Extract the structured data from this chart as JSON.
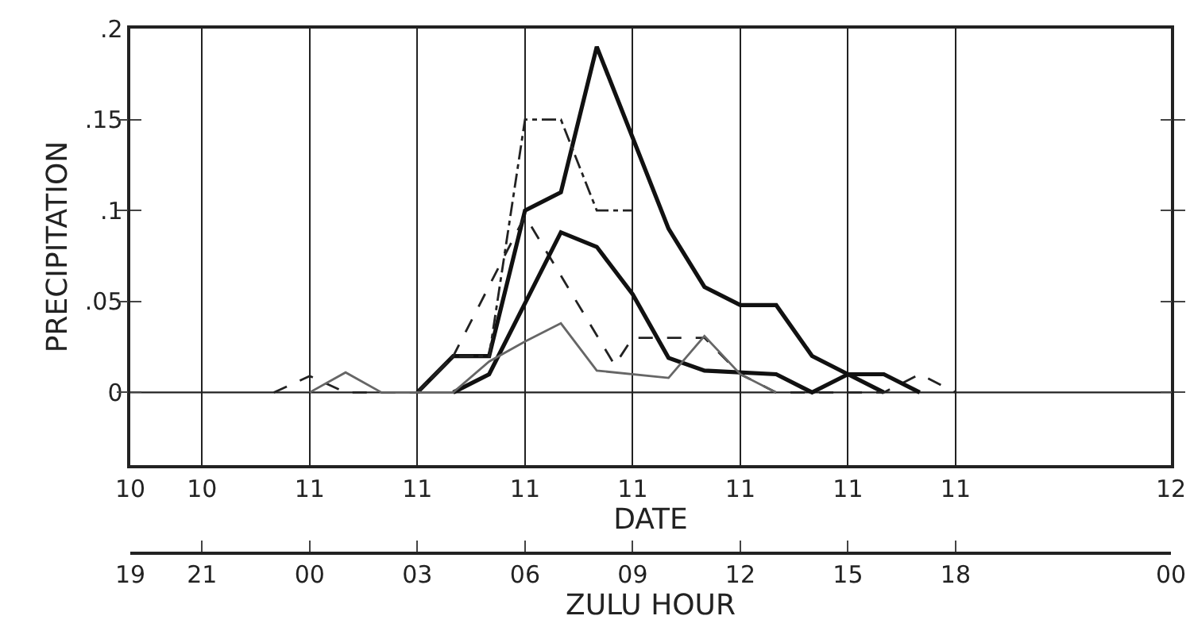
{
  "chart_data": {
    "type": "line",
    "xlabel": "DATE",
    "ylabel": "PRECIPITATION",
    "x2label": "ZULU HOUR",
    "xlim": [
      "--01-10T19:00",
      "--01-12T00:00"
    ],
    "xticks": [
      {
        "value": "--01-10T19:00",
        "label": "10"
      },
      {
        "value": "--01-10T21:00",
        "label": "10"
      },
      {
        "value": "--01-11T00:00",
        "label": "11"
      },
      {
        "value": "--01-11T03:00",
        "label": "11"
      },
      {
        "value": "--01-11T06:00",
        "label": "11"
      },
      {
        "value": "--01-11T09:00",
        "label": "11"
      },
      {
        "value": "--01-11T12:00",
        "label": "11"
      },
      {
        "value": "--01-11T15:00",
        "label": "11"
      },
      {
        "value": "--01-11T18:00",
        "label": "11"
      },
      {
        "value": "--01-12T00:00",
        "label": "12"
      }
    ],
    "x2lim": [
      "--01-10T19:00",
      "--01-12T00:00"
    ],
    "x2ticks": [
      {
        "value": "--01-10T19:00",
        "label": "19"
      },
      {
        "value": "--01-10T21:00",
        "label": "21"
      },
      {
        "value": "--01-11T00:00",
        "label": "00"
      },
      {
        "value": "--01-11T03:00",
        "label": "03"
      },
      {
        "value": "--01-11T06:00",
        "label": "06"
      },
      {
        "value": "--01-11T09:00",
        "label": "09"
      },
      {
        "value": "--01-11T12:00",
        "label": "12"
      },
      {
        "value": "--01-11T15:00",
        "label": "15"
      },
      {
        "value": "--01-11T18:00",
        "label": "18"
      },
      {
        "value": "--01-12T00:00",
        "label": "00"
      }
    ],
    "ylim": [
      -0.04,
      0.2
    ],
    "yticks": [
      0,
      {
        "value": 0.05,
        "label": ".05"
      },
      {
        "value": 0.1,
        "label": ".1"
      },
      {
        "value": 0.15,
        "label": ".15"
      },
      {
        "value": 0.2,
        "label": ".2"
      }
    ],
    "grid": "x",
    "marker": "none",
    "ref_lines": [
      {
        "axis": "y",
        "value": 0,
        "color": "#222222"
      }
    ],
    "series": [
      {
        "color": "#111111",
        "line_style": "solid",
        "x": [
          "--01-11T03:00",
          "--01-11T04:00",
          "--01-11T05:00",
          "--01-11T06:00",
          "--01-11T07:00",
          "--01-11T08:00",
          "--01-11T09:00",
          "--01-11T10:00",
          "--01-11T11:00",
          "--01-11T12:00",
          "--01-11T13:00",
          "--01-11T14:00",
          "--01-11T15:00",
          "--01-11T16:00"
        ],
        "values": [
          0,
          0.02,
          0.02,
          0.1,
          0.11,
          0.19,
          0.14,
          0.09,
          0.058,
          0.048,
          0.048,
          0.02,
          0.01,
          0
        ]
      },
      {
        "color": "#222222",
        "line_style": "dashdot",
        "x": [
          "--01-11T03:00",
          "--01-11T04:00",
          "--01-11T05:00",
          "--01-11T06:00",
          "--01-11T07:00",
          "--01-11T08:00",
          "--01-11T09:00"
        ],
        "values": [
          0,
          0.02,
          0.02,
          0.15,
          0.15,
          0.1,
          0.1
        ]
      },
      {
        "color": "#222222",
        "line_style": "dashed",
        "x": [
          "--01-10T23:00",
          "--01-11T00:00",
          "--01-11T01:00",
          "--01-11T03:00",
          "--01-11T04:00",
          "--01-11T06:00",
          "--01-11T08:30",
          "--01-11T09:00",
          "--01-11T11:00",
          "--01-11T12:00",
          "--01-11T13:00",
          "--01-11T16:00",
          "--01-11T17:00",
          "--01-11T18:00"
        ],
        "values": [
          0,
          0.009,
          0,
          0,
          0.02,
          0.097,
          0.015,
          0.03,
          0.03,
          0.01,
          0,
          0,
          0.01,
          0
        ]
      },
      {
        "color": "#111111",
        "line_style": "solid",
        "x": [
          "--01-11T04:00",
          "--01-11T05:00",
          "--01-11T07:00",
          "--01-11T08:00",
          "--01-11T09:00",
          "--01-11T10:00",
          "--01-11T11:00",
          "--01-11T13:00",
          "--01-11T14:00",
          "--01-11T15:00",
          "--01-11T16:00",
          "--01-11T17:00"
        ],
        "values": [
          0,
          0.01,
          0.088,
          0.08,
          0.054,
          0.019,
          0.012,
          0.01,
          0,
          0.01,
          0.01,
          0
        ]
      },
      {
        "color": "#666666",
        "line_style": "solid",
        "x": [
          "--01-11T00:00",
          "--01-11T01:00",
          "--01-11T02:00",
          "--01-11T04:00",
          "--01-11T05:00",
          "--01-11T06:00",
          "--01-11T07:00",
          "--01-11T08:00",
          "--01-11T10:00",
          "--01-11T11:00",
          "--01-11T12:00",
          "--01-11T13:00"
        ],
        "values": [
          0,
          0.011,
          0,
          0,
          0.017,
          0.028,
          0.038,
          0.012,
          0.008,
          0.031,
          0.01,
          0
        ]
      }
    ]
  }
}
